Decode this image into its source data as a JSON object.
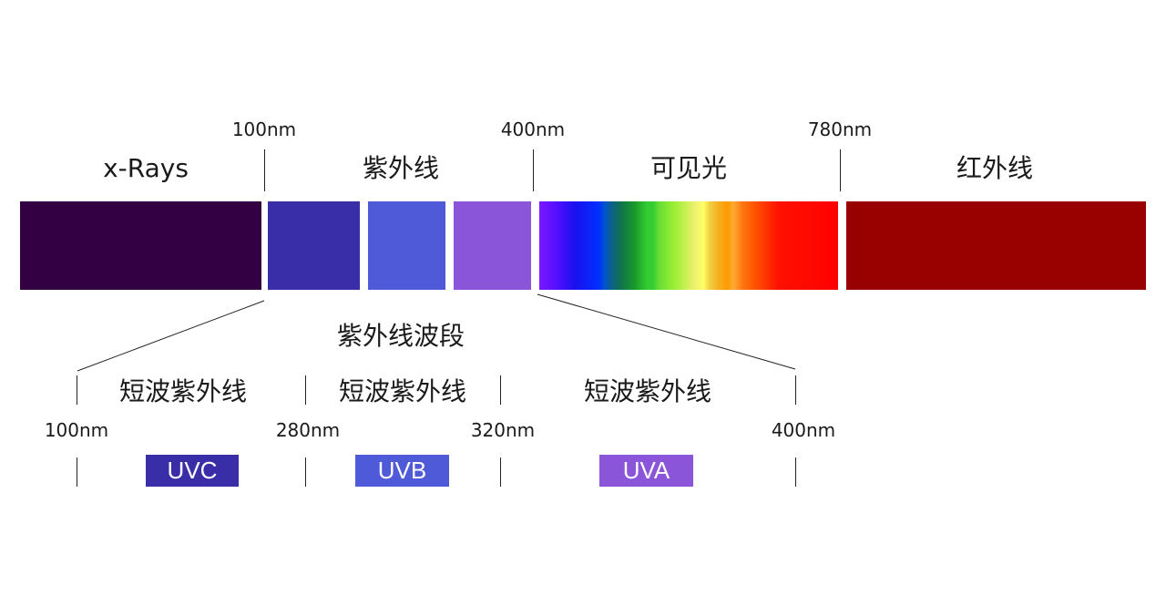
{
  "top_ticks": [
    "100nm",
    "400nm",
    "780nm"
  ],
  "regions": [
    "x-Rays",
    "紫外线",
    "可见光",
    "红外线"
  ],
  "uv_band_title": "紫外线波段",
  "sub_bands": [
    "短波紫外线",
    "短波紫外线",
    "短波紫外线"
  ],
  "bottom_ticks": [
    "100nm",
    "280nm",
    "320nm",
    "400nm"
  ],
  "badges": [
    "UVC",
    "UVB",
    "UVA"
  ],
  "colors": {
    "xray": "#330044",
    "uvc": "#3a2ea8",
    "uvb": "#4f5ad8",
    "uva": "#8a55d8",
    "infrared": "#990000"
  }
}
